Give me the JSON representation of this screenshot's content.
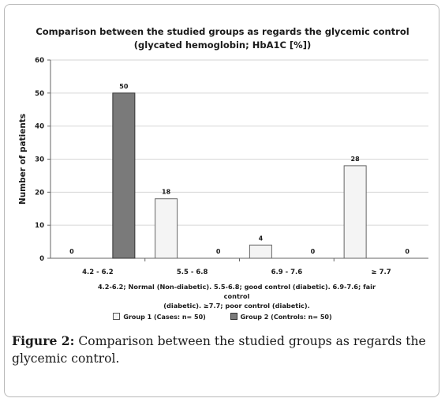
{
  "chart_data": {
    "type": "bar",
    "title": "Comparison between the studied groups as regards the glycemic control",
    "subtitle": "(glycated hemoglobin; HbA1C [%])",
    "ylabel": "Number of patients",
    "xlabel": "",
    "ylim": [
      0,
      60
    ],
    "yticks": [
      0,
      10,
      20,
      30,
      40,
      50,
      60
    ],
    "grid": true,
    "legend_position": "bottom",
    "categories": [
      "4.2 - 6.2",
      "5.5 - 6.8",
      "6.9 - 7.6",
      "≥ 7.7"
    ],
    "series": [
      {
        "name": "Group 1 (Cases: n= 50)",
        "values": [
          0,
          18,
          4,
          28
        ],
        "color": "#f4f4f4",
        "stroke": "#666666"
      },
      {
        "name": "Group 2 (Controls: n= 50)",
        "values": [
          50,
          0,
          0,
          0
        ],
        "color": "#7a7a7a",
        "stroke": "#333333"
      }
    ],
    "note_line1": "4.2-6.2; Normal (Non-diabetic). 5.5-6.8; good control (diabetic). 6.9-7.6; fair control",
    "note_line2": "(diabetic). ≥7.7; poor control (diabetic)."
  },
  "caption": {
    "label": "Figure 2:",
    "text": " Comparison between the studied groups as regards the glycemic control."
  }
}
